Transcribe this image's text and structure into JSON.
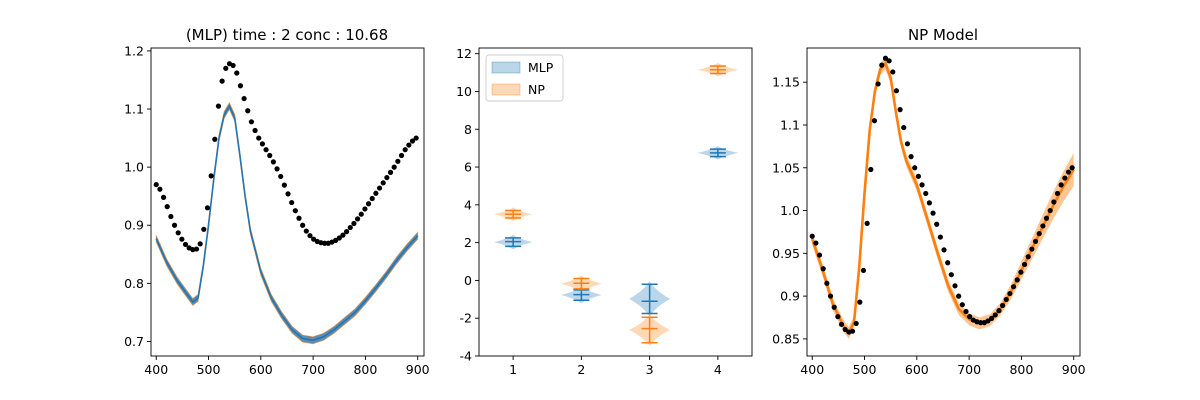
{
  "colors": {
    "mlp": "#1f77b4",
    "np": "#ff7f0e",
    "mlp_band": "#5b8db5",
    "dots": "#000000"
  },
  "chart_data": [
    {
      "type": "line",
      "title": "(MLP) time : 2 conc : 10.68",
      "xlabel": "",
      "ylabel": "",
      "xlim": [
        390,
        912
      ],
      "ylim": [
        0.675,
        1.205
      ],
      "xticks": [
        400,
        500,
        600,
        700,
        800,
        900
      ],
      "yticks": [
        0.7,
        0.8,
        0.9,
        1.0,
        1.1,
        1.2
      ],
      "series": [
        {
          "kind": "scatter",
          "x": [
            400,
            407,
            414,
            421,
            428,
            435,
            442,
            449,
            456,
            463,
            470,
            477,
            484,
            491,
            498,
            505,
            512,
            519,
            526,
            533,
            540,
            547,
            554,
            561,
            568,
            575,
            582,
            589,
            596,
            603,
            610,
            617,
            624,
            631,
            638,
            645,
            652,
            659,
            666,
            673,
            680,
            687,
            694,
            701,
            708,
            715,
            722,
            729,
            736,
            743,
            750,
            757,
            764,
            771,
            778,
            785,
            792,
            799,
            806,
            813,
            820,
            827,
            834,
            841,
            848,
            855,
            862,
            869,
            876,
            883,
            890,
            897
          ],
          "y": [
            0.97,
            0.962,
            0.948,
            0.932,
            0.915,
            0.9,
            0.887,
            0.876,
            0.867,
            0.861,
            0.858,
            0.859,
            0.868,
            0.893,
            0.93,
            0.985,
            1.048,
            1.105,
            1.148,
            1.17,
            1.178,
            1.175,
            1.162,
            1.14,
            1.118,
            1.097,
            1.078,
            1.063,
            1.05,
            1.04,
            1.03,
            1.02,
            1.009,
            0.997,
            0.984,
            0.969,
            0.954,
            0.939,
            0.925,
            0.912,
            0.9,
            0.89,
            0.882,
            0.876,
            0.872,
            0.87,
            0.869,
            0.869,
            0.871,
            0.874,
            0.878,
            0.883,
            0.889,
            0.896,
            0.903,
            0.911,
            0.919,
            0.928,
            0.937,
            0.946,
            0.955,
            0.964,
            0.973,
            0.982,
            0.991,
            1.0,
            1.01,
            1.02,
            1.03,
            1.038,
            1.045,
            1.05
          ]
        },
        {
          "kind": "band",
          "x": [
            400,
            420,
            440,
            460,
            470,
            480,
            490,
            500,
            510,
            520,
            530,
            540,
            550,
            560,
            570,
            580,
            600,
            620,
            640,
            660,
            680,
            700,
            720,
            740,
            760,
            780,
            800,
            820,
            840,
            860,
            880,
            900
          ],
          "y": [
            0.877,
            0.836,
            0.805,
            0.78,
            0.768,
            0.775,
            0.83,
            0.9,
            0.98,
            1.05,
            1.09,
            1.105,
            1.085,
            1.02,
            0.95,
            0.89,
            0.82,
            0.775,
            0.745,
            0.72,
            0.705,
            0.702,
            0.708,
            0.72,
            0.735,
            0.75,
            0.77,
            0.792,
            0.815,
            0.84,
            0.862,
            0.882
          ],
          "spread": 0.006
        }
      ]
    },
    {
      "type": "violin",
      "title": "",
      "xlim": [
        0.5,
        4.5
      ],
      "ylim": [
        -4.0,
        12.3
      ],
      "xticks": [
        1,
        2,
        3,
        4
      ],
      "yticks": [
        -4,
        -2,
        0,
        2,
        4,
        6,
        8,
        10,
        12
      ],
      "legend": {
        "position": "upper-left",
        "entries": [
          "MLP",
          "NP"
        ]
      },
      "series": [
        {
          "name": "MLP",
          "violins": [
            {
              "x": 1,
              "min": 1.8,
              "mean": 2.05,
              "max": 2.25,
              "halfwidth": 0.28
            },
            {
              "x": 2,
              "min": -1.05,
              "mean": -0.75,
              "max": -0.5,
              "halfwidth": 0.3
            },
            {
              "x": 3,
              "min": -1.75,
              "mean": -1.1,
              "max": -0.2,
              "halfwidth": 0.3
            },
            {
              "x": 4,
              "min": 6.55,
              "mean": 6.75,
              "max": 6.95,
              "halfwidth": 0.3
            }
          ]
        },
        {
          "name": "NP",
          "violins": [
            {
              "x": 1,
              "min": 3.3,
              "mean": 3.5,
              "max": 3.7,
              "halfwidth": 0.28
            },
            {
              "x": 2,
              "min": -0.45,
              "mean": -0.15,
              "max": 0.1,
              "halfwidth": 0.3
            },
            {
              "x": 3,
              "min": -3.3,
              "mean": -2.55,
              "max": -1.95,
              "halfwidth": 0.3
            },
            {
              "x": 4,
              "min": 10.95,
              "mean": 11.15,
              "max": 11.35,
              "halfwidth": 0.3
            }
          ]
        }
      ]
    },
    {
      "type": "line",
      "title": "NP Model",
      "xlabel": "",
      "ylabel": "",
      "xlim": [
        390,
        912
      ],
      "ylim": [
        0.83,
        1.19
      ],
      "xticks": [
        400,
        500,
        600,
        700,
        800,
        900
      ],
      "yticks": [
        0.85,
        0.9,
        0.95,
        1.0,
        1.05,
        1.1,
        1.15
      ],
      "series": [
        {
          "kind": "scatter",
          "x": [
            400,
            407,
            414,
            421,
            428,
            435,
            442,
            449,
            456,
            463,
            470,
            477,
            484,
            491,
            498,
            505,
            512,
            519,
            526,
            533,
            540,
            547,
            554,
            561,
            568,
            575,
            582,
            589,
            596,
            603,
            610,
            617,
            624,
            631,
            638,
            645,
            652,
            659,
            666,
            673,
            680,
            687,
            694,
            701,
            708,
            715,
            722,
            729,
            736,
            743,
            750,
            757,
            764,
            771,
            778,
            785,
            792,
            799,
            806,
            813,
            820,
            827,
            834,
            841,
            848,
            855,
            862,
            869,
            876,
            883,
            890,
            897
          ],
          "y": [
            0.97,
            0.962,
            0.948,
            0.932,
            0.915,
            0.9,
            0.887,
            0.876,
            0.867,
            0.861,
            0.858,
            0.859,
            0.868,
            0.893,
            0.93,
            0.985,
            1.048,
            1.105,
            1.148,
            1.17,
            1.178,
            1.175,
            1.162,
            1.14,
            1.118,
            1.097,
            1.078,
            1.063,
            1.05,
            1.04,
            1.03,
            1.02,
            1.009,
            0.997,
            0.984,
            0.969,
            0.954,
            0.939,
            0.925,
            0.912,
            0.9,
            0.89,
            0.882,
            0.876,
            0.872,
            0.87,
            0.869,
            0.869,
            0.871,
            0.874,
            0.878,
            0.883,
            0.889,
            0.896,
            0.903,
            0.911,
            0.919,
            0.928,
            0.937,
            0.946,
            0.955,
            0.964,
            0.973,
            0.982,
            0.991,
            1.0,
            1.01,
            1.02,
            1.03,
            1.038,
            1.045,
            1.05
          ]
        },
        {
          "kind": "band",
          "x": [
            400,
            420,
            440,
            460,
            470,
            480,
            490,
            500,
            510,
            520,
            530,
            540,
            550,
            560,
            570,
            580,
            600,
            620,
            640,
            660,
            680,
            700,
            720,
            740,
            760,
            780,
            800,
            820,
            840,
            860,
            880,
            900
          ],
          "y": [
            0.967,
            0.93,
            0.89,
            0.865,
            0.857,
            0.87,
            0.935,
            1.02,
            1.095,
            1.14,
            1.165,
            1.172,
            1.155,
            1.115,
            1.08,
            1.058,
            1.03,
            0.99,
            0.95,
            0.912,
            0.885,
            0.873,
            0.868,
            0.872,
            0.885,
            0.905,
            0.93,
            0.955,
            0.98,
            1.005,
            1.028,
            1.048
          ],
          "spread": 0.007
        }
      ]
    }
  ]
}
